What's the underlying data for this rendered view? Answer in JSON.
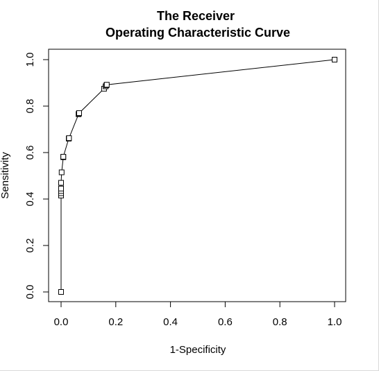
{
  "chart_data": {
    "type": "line",
    "title_lines": [
      "The Receiver",
      "Operating Characteristic Curve"
    ],
    "xlabel": "1-Specificity",
    "ylabel": "Sensitivity",
    "xlim": [
      0,
      1
    ],
    "ylim": [
      0,
      1
    ],
    "xticks": [
      0.0,
      0.2,
      0.4,
      0.6,
      0.8,
      1.0
    ],
    "yticks": [
      0.0,
      0.2,
      0.4,
      0.6,
      0.8,
      1.0
    ],
    "xtick_labels": [
      "0.0",
      "0.2",
      "0.4",
      "0.6",
      "0.8",
      "1.0"
    ],
    "ytick_labels": [
      "0.0",
      "0.2",
      "0.4",
      "0.6",
      "0.8",
      "1.0"
    ],
    "marker": "open-square",
    "grid": false,
    "series": [
      {
        "x": [
          0.0,
          0.0,
          0.0,
          0.0,
          0.0,
          0.0,
          0.002,
          0.008,
          0.008,
          0.028,
          0.029,
          0.064,
          0.065,
          0.066,
          0.157,
          0.163,
          0.166,
          0.167,
          1.0
        ],
        "y": [
          0.0,
          0.415,
          0.425,
          0.435,
          0.445,
          0.47,
          0.515,
          0.58,
          0.582,
          0.66,
          0.662,
          0.765,
          0.768,
          0.77,
          0.875,
          0.885,
          0.89,
          0.892,
          1.0
        ]
      }
    ]
  }
}
